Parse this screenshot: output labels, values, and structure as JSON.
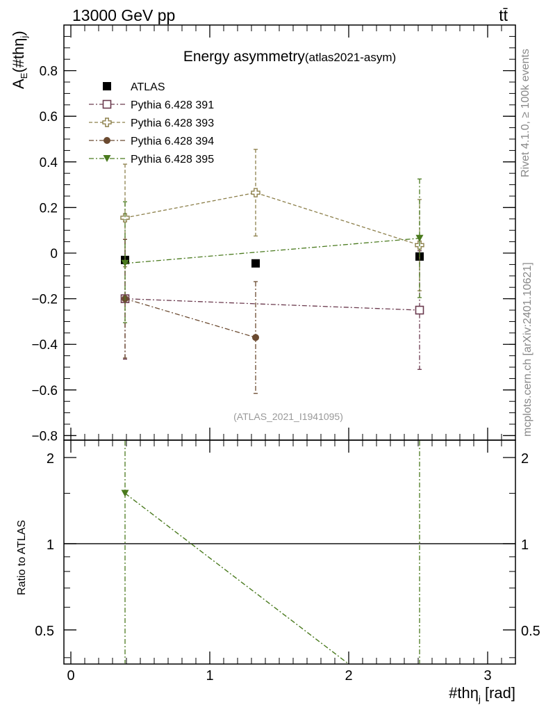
{
  "header": {
    "left": "13000 GeV pp",
    "right": "tt̄",
    "side_rivet": "Rivet 4.1.0, ≥ 100k events",
    "side_mcplots": "mcplots.cern.ch [arXiv:2401.10621]"
  },
  "watermark": "(ATLAS_2021_I1941095)",
  "chart_data": [
    {
      "type": "scatter",
      "title": "Energy asymmetry",
      "subtitle": "(atlas2021-asym)",
      "ylabel": "A_E(#thη_j)",
      "ylabel_main": "A",
      "ylabel_sub": "E",
      "ylabel_paren": "(#thη",
      "ylabel_paren_sub": "j",
      "ylabel_close": ")",
      "xlim": [
        -0.05,
        3.2
      ],
      "ylim": [
        -0.82,
        1.0
      ],
      "yticks": [
        -0.8,
        -0.6,
        -0.4,
        -0.2,
        0,
        0.2,
        0.4,
        0.6,
        0.8
      ],
      "ytick_labels": [
        "−0.8",
        "−0.6",
        "−0.4",
        "−0.2",
        "0",
        "0.2",
        "0.4",
        "0.6",
        "0.8"
      ],
      "x": [
        0.39,
        1.33,
        2.51
      ],
      "series": [
        {
          "name": "ATLAS",
          "color": "#000000",
          "marker": "square-filled",
          "line": "none",
          "values": [
            -0.03,
            -0.045,
            -0.015
          ],
          "err_up": [
            0,
            0,
            0
          ],
          "err_down": [
            0,
            0,
            0
          ]
        },
        {
          "name": "Pythia 6.428 391",
          "color": "#6b3a4e",
          "marker": "square-open",
          "line": "dashdot",
          "values": [
            -0.2,
            null,
            -0.25
          ],
          "err_up": [
            0.26,
            0,
            0.26
          ],
          "err_down": [
            0.265,
            0,
            0.26
          ]
        },
        {
          "name": "Pythia 6.428 393",
          "color": "#8c7f4a",
          "marker": "cross-open",
          "line": "dash",
          "values": [
            0.155,
            0.265,
            0.035
          ],
          "err_up": [
            0.235,
            0.19,
            0.2
          ],
          "err_down": [
            0.215,
            0.19,
            0.2
          ]
        },
        {
          "name": "Pythia 6.428 394",
          "color": "#6b4a30",
          "marker": "circle-filled",
          "line": "dashdot",
          "values": [
            -0.2,
            -0.37,
            null
          ],
          "err_up": [
            0.26,
            0.245,
            0
          ],
          "err_down": [
            0.26,
            0.245,
            0
          ]
        },
        {
          "name": "Pythia 6.428 395",
          "color": "#4a7a1e",
          "marker": "triangle-down-filled",
          "line": "dashdot",
          "values": [
            -0.045,
            null,
            0.065
          ],
          "err_up": [
            0.27,
            0,
            0.26
          ],
          "err_down": [
            0.26,
            0,
            0.26
          ]
        }
      ]
    },
    {
      "type": "scatter",
      "ylabel": "Ratio to ATLAS",
      "xlabel_main": "#thη",
      "xlabel_sub": "j",
      "xlabel_unit": " [rad]",
      "xlim": [
        -0.05,
        3.2
      ],
      "xticks": [
        0,
        1,
        2,
        3
      ],
      "xtick_labels": [
        "0",
        "1",
        "2",
        "3"
      ],
      "ylim": [
        0.38,
        2.3
      ],
      "yscale": "log",
      "yticks": [
        0.5,
        1,
        2
      ],
      "ytick_labels": [
        "0.5",
        "1",
        "2"
      ],
      "reference_line": 1,
      "series": [
        {
          "name": "Pythia 6.428 395",
          "color": "#4a7a1e",
          "marker": "triangle-down-filled",
          "points": [
            [
              0.39,
              1.5
            ],
            [
              2.0,
              0.38
            ]
          ],
          "err_lines_x": [
            0.39,
            2.51
          ]
        }
      ]
    }
  ]
}
